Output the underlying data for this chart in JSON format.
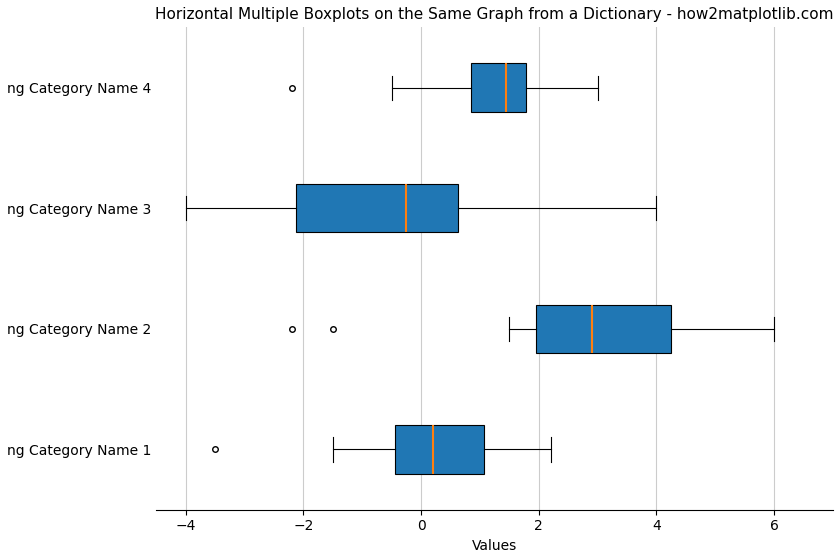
{
  "title": "Horizontal Multiple Boxplots on the Same Graph from a Dictionary - how2matplotlib.com",
  "xlabel": "Values",
  "categories": [
    "ng Category Name 1",
    "ng Category Name 2",
    "ng Category Name 3",
    "ng Category Name 4"
  ],
  "data": {
    "ng Category Name 1": [
      -3.5,
      -1.5,
      -1.3,
      -0.6,
      -0.4,
      -0.2,
      0.0,
      0.1,
      0.3,
      0.5,
      0.7,
      1.0,
      1.3,
      1.5,
      2.0,
      2.2
    ],
    "ng Category Name 2": [
      -2.2,
      -1.5,
      1.5,
      1.8,
      2.0,
      2.2,
      2.5,
      2.8,
      3.0,
      3.2,
      3.5,
      4.0,
      5.0,
      5.5,
      6.0,
      6.0
    ],
    "ng Category Name 3": [
      -4.0,
      -3.5,
      -3.0,
      -2.5,
      -2.0,
      -1.5,
      -1.0,
      -0.5,
      0.0,
      0.2,
      0.4,
      0.5,
      1.0,
      2.0,
      3.0,
      4.0
    ],
    "ng Category Name 4": [
      -2.2,
      -0.5,
      -0.3,
      0.8,
      1.0,
      1.2,
      1.4,
      1.5,
      1.6,
      1.7,
      1.8,
      2.0,
      2.5,
      3.0
    ]
  },
  "box_color": "#2077b4",
  "median_color": "#ff7f0e",
  "background_color": "#ffffff",
  "grid_color": "#cccccc",
  "title_fontsize": 11,
  "label_fontsize": 10,
  "xlim": [
    -4.5,
    7.0
  ],
  "figsize": [
    8.4,
    5.6
  ],
  "dpi": 100
}
